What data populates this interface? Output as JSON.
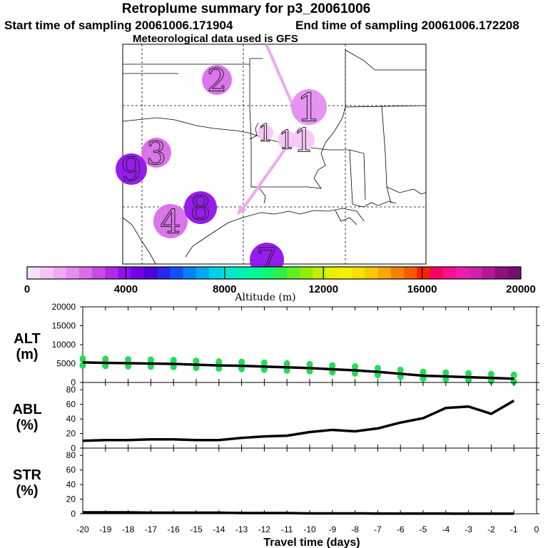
{
  "header": {
    "title": "Retroplume summary for p3_20061006",
    "start": "Start time of sampling 20061006.171904",
    "end": "End time of sampling 20061006.172208",
    "met": "Meteorological data used is GFS"
  },
  "map": {
    "plume_labels": [
      {
        "label": "1",
        "altitude_m": 2000
      },
      {
        "label": "1",
        "altitude_m": 1000
      },
      {
        "label": "1",
        "altitude_m": 1000
      },
      {
        "label": "1",
        "altitude_m": 1000
      },
      {
        "label": "2",
        "altitude_m": 2500
      },
      {
        "label": "3",
        "altitude_m": 2500
      },
      {
        "label": "4",
        "altitude_m": 2500
      },
      {
        "label": "7",
        "altitude_m": 3800
      },
      {
        "label": "8",
        "altitude_m": 4200
      },
      {
        "label": "9",
        "altitude_m": 4200
      }
    ]
  },
  "colorbar": {
    "label": "Altitude (m)",
    "range": [
      0,
      20000
    ],
    "ticks": [
      "0",
      "4000",
      "8000",
      "12000",
      "16000",
      "20000"
    ],
    "colors": [
      "#f9e0fb",
      "#f5c7f8",
      "#f0acf3",
      "#e58ef0",
      "#d96ee9",
      "#c84ae8",
      "#b02ae8",
      "#9010ee",
      "#7000e6",
      "#4e00d6",
      "#2828f0",
      "#1450f8",
      "#0880f8",
      "#00a8f0",
      "#00d0e8",
      "#00e8d0",
      "#00f0b8",
      "#00f898",
      "#10f870",
      "#30f040",
      "#60f020",
      "#90f000",
      "#c0f000",
      "#e8f000",
      "#f8f000",
      "#f8e000",
      "#f8c800",
      "#f8a800",
      "#f88000",
      "#f85a00",
      "#f82000",
      "#f80060",
      "#f81090",
      "#e820a8",
      "#d020b0",
      "#b41898",
      "#901080",
      "#781070"
    ]
  },
  "chart_data": [
    {
      "type": "line",
      "name": "altitude",
      "ylabel": "ALT\n(m)",
      "ylabel_lines": [
        "ALT",
        "(m)"
      ],
      "ylim": [
        0,
        20000
      ],
      "yticks": [
        "0",
        "5000",
        "10000",
        "15000",
        "20000"
      ],
      "x": [
        -20,
        -19,
        -18,
        -17,
        -16,
        -15,
        -14,
        -13,
        -12,
        -11,
        -10,
        -9,
        -8,
        -7,
        -6,
        -5,
        -4,
        -3,
        -2,
        -1
      ],
      "values": [
        5300,
        5200,
        5100,
        5000,
        4900,
        4700,
        4500,
        4400,
        4200,
        4000,
        3800,
        3500,
        3200,
        2800,
        2300,
        1800,
        1600,
        1400,
        1200,
        1000
      ],
      "marker_color": "#22dd55"
    },
    {
      "type": "line",
      "name": "abl",
      "ylabel": "ABL\n(%)",
      "ylabel_lines": [
        "ABL",
        "(%)"
      ],
      "ylim": [
        0,
        90
      ],
      "yticks": [
        "0",
        "20",
        "40",
        "60",
        "80"
      ],
      "x": [
        -20,
        -19,
        -18,
        -17,
        -16,
        -15,
        -14,
        -13,
        -12,
        -11,
        -10,
        -9,
        -8,
        -7,
        -6,
        -5,
        -4,
        -3,
        -2,
        -1
      ],
      "values": [
        10,
        11,
        11,
        12,
        12,
        11,
        11,
        14,
        16,
        17,
        22,
        25,
        23,
        27,
        35,
        41,
        55,
        57,
        47,
        65
      ]
    },
    {
      "type": "line",
      "name": "str",
      "ylabel": "STR\n(%)",
      "ylabel_lines": [
        "STR",
        "(%)"
      ],
      "ylim": [
        0,
        90
      ],
      "yticks": [
        "0",
        "20",
        "40",
        "60",
        "80"
      ],
      "xlabel": "Travel time (days)",
      "xticks": [
        "-20",
        "-19",
        "-18",
        "-17",
        "-16",
        "-15",
        "-14",
        "-13",
        "-12",
        "-11",
        "-10",
        "-9",
        "-8",
        "-7",
        "-6",
        "-5",
        "-4",
        "-3",
        "-2",
        "-1",
        "0"
      ],
      "x": [
        -20,
        -19,
        -18,
        -17,
        -16,
        -15,
        -14,
        -13,
        -12,
        -11,
        -10,
        -9,
        -8,
        -7,
        -6,
        -5,
        -4,
        -3,
        -2,
        -1
      ],
      "values": [
        2,
        2,
        2,
        1.5,
        1.5,
        1.5,
        1.5,
        1,
        1,
        1,
        0.5,
        0.5,
        0.5,
        0.3,
        0.3,
        0.2,
        0.2,
        0.1,
        0.1,
        0.1
      ]
    }
  ]
}
